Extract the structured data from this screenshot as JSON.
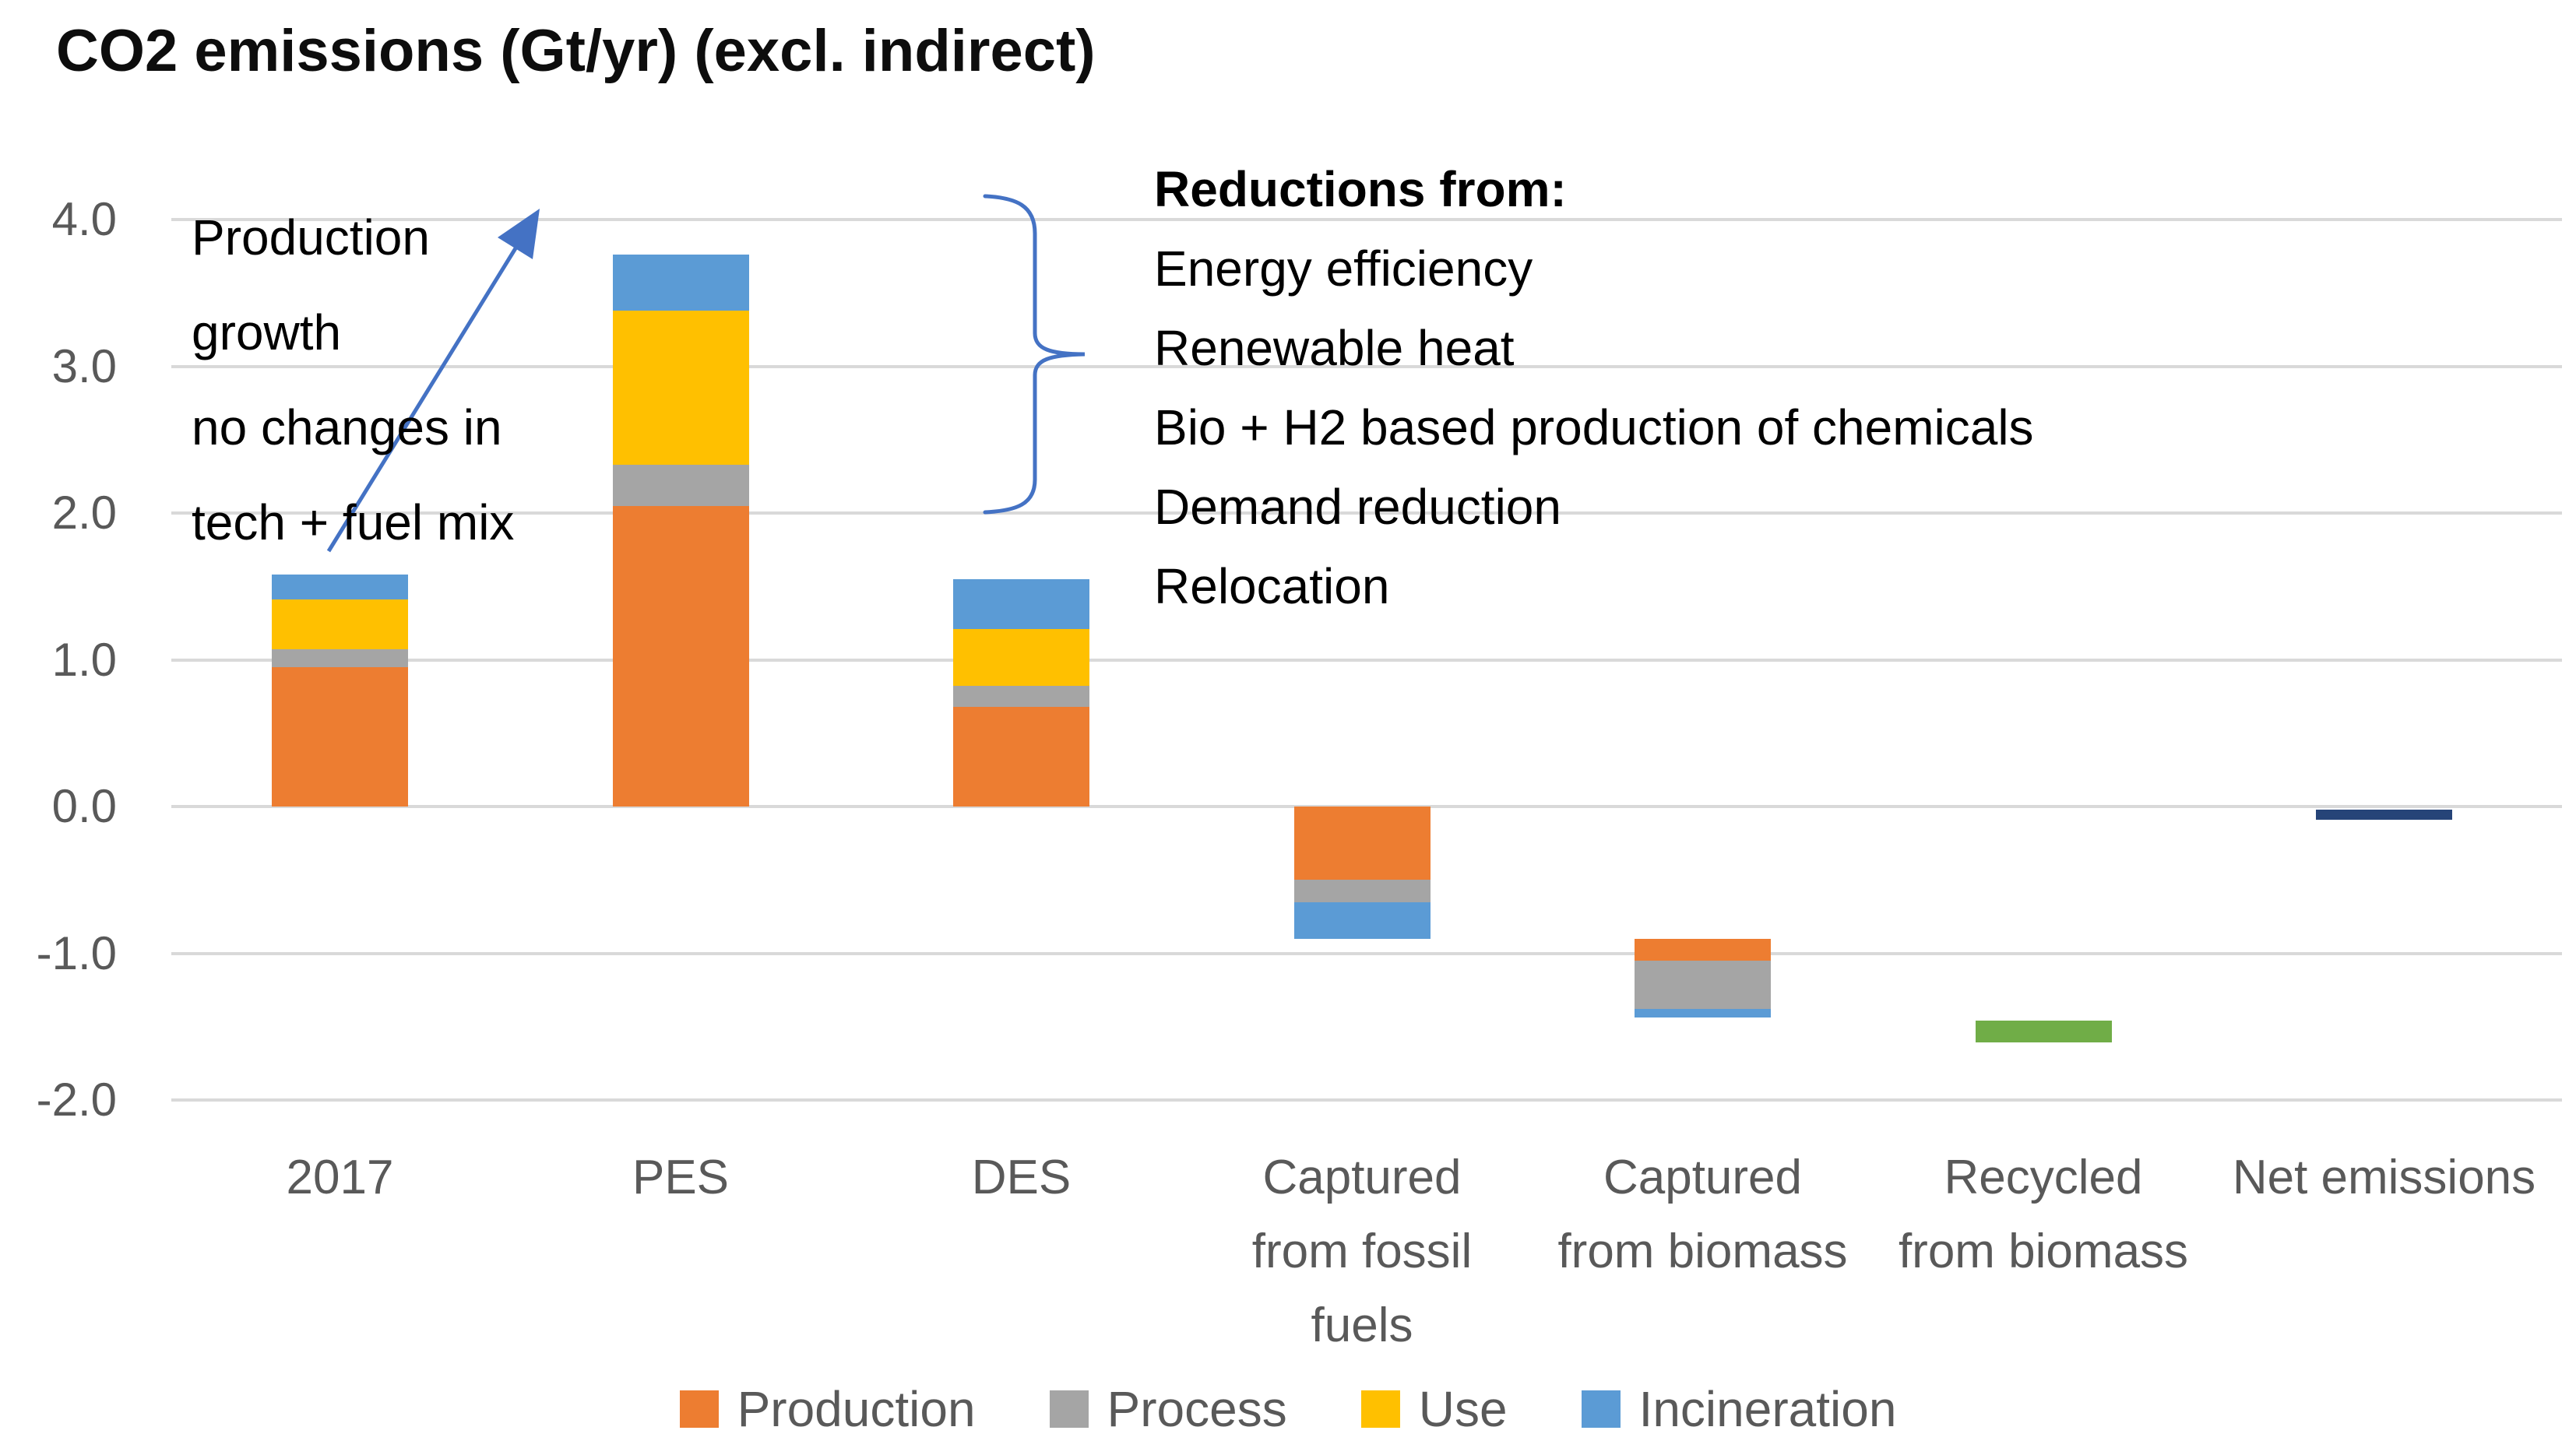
{
  "title": "CO2 emissions (Gt/yr) (excl. indirect)",
  "chart_data": {
    "type": "bar",
    "stacked": true,
    "waterfall": true,
    "title": "CO2 emissions (Gt/yr) (excl. indirect)",
    "xlabel": "",
    "ylabel": "",
    "ylim": [
      -2.2,
      4.2
    ],
    "yticks": [
      4.0,
      3.0,
      2.0,
      1.0,
      0.0,
      -1.0,
      -2.0
    ],
    "grid": true,
    "legend_position": "bottom",
    "categories": [
      "2017",
      "PES",
      "DES",
      "Captured\nfrom fossil\nfuels",
      "Captured\nfrom biomass",
      "Recycled\nfrom biomass",
      "Net emissions"
    ],
    "series_colors": {
      "Production": "#ED7D31",
      "Process": "#A5A5A5",
      "Use": "#FFC000",
      "Incineration": "#5B9BD5",
      "Recycled": "#70AD47",
      "Net": "#264478"
    },
    "bars": [
      {
        "category": "2017",
        "start": 0,
        "segments": [
          {
            "series": "Production",
            "value": 0.95
          },
          {
            "series": "Process",
            "value": 0.12
          },
          {
            "series": "Use",
            "value": 0.34
          },
          {
            "series": "Incineration",
            "value": 0.17
          }
        ]
      },
      {
        "category": "PES",
        "start": 0,
        "segments": [
          {
            "series": "Production",
            "value": 2.05
          },
          {
            "series": "Process",
            "value": 0.28
          },
          {
            "series": "Use",
            "value": 1.05
          },
          {
            "series": "Incineration",
            "value": 0.38
          }
        ]
      },
      {
        "category": "DES",
        "start": 0,
        "segments": [
          {
            "series": "Production",
            "value": 0.68
          },
          {
            "series": "Process",
            "value": 0.14
          },
          {
            "series": "Use",
            "value": 0.39
          },
          {
            "series": "Incineration",
            "value": 0.34
          }
        ]
      },
      {
        "category": "Captured\nfrom fossil\nfuels",
        "start": 0,
        "segments": [
          {
            "series": "Production",
            "value": -0.5
          },
          {
            "series": "Process",
            "value": -0.15
          },
          {
            "series": "Incineration",
            "value": -0.25
          }
        ]
      },
      {
        "category": "Captured\nfrom biomass",
        "start": -0.9,
        "segments": [
          {
            "series": "Production",
            "value": -0.15
          },
          {
            "series": "Process",
            "value": -0.33
          },
          {
            "series": "Incineration",
            "value": -0.06
          }
        ]
      },
      {
        "category": "Recycled\nfrom biomass",
        "start": -1.46,
        "segments": [
          {
            "series": "Recycled",
            "value": -0.15
          }
        ]
      },
      {
        "category": "Net emissions",
        "start": -0.02,
        "segments": [
          {
            "series": "Net",
            "value": -0.07
          }
        ]
      }
    ]
  },
  "legend": [
    {
      "label": "Production",
      "color": "#ED7D31"
    },
    {
      "label": "Process",
      "color": "#A5A5A5"
    },
    {
      "label": "Use",
      "color": "#FFC000"
    },
    {
      "label": "Incineration",
      "color": "#5B9BD5"
    }
  ],
  "annotations": {
    "growth_note": {
      "text": "Production\ngrowth\nno changes in\ntech + fuel mix"
    },
    "reductions": {
      "heading": "Reductions from:",
      "items": [
        "Energy efficiency",
        "Renewable heat",
        "Bio + H2 based production of chemicals",
        "Demand reduction",
        "Relocation"
      ]
    },
    "arrow_color": "#4472C4",
    "brace_color": "#4472C4"
  },
  "colors": {
    "gridline": "#D9D9D9",
    "axis_text": "#595959",
    "title_text": "#0D0D0D"
  }
}
